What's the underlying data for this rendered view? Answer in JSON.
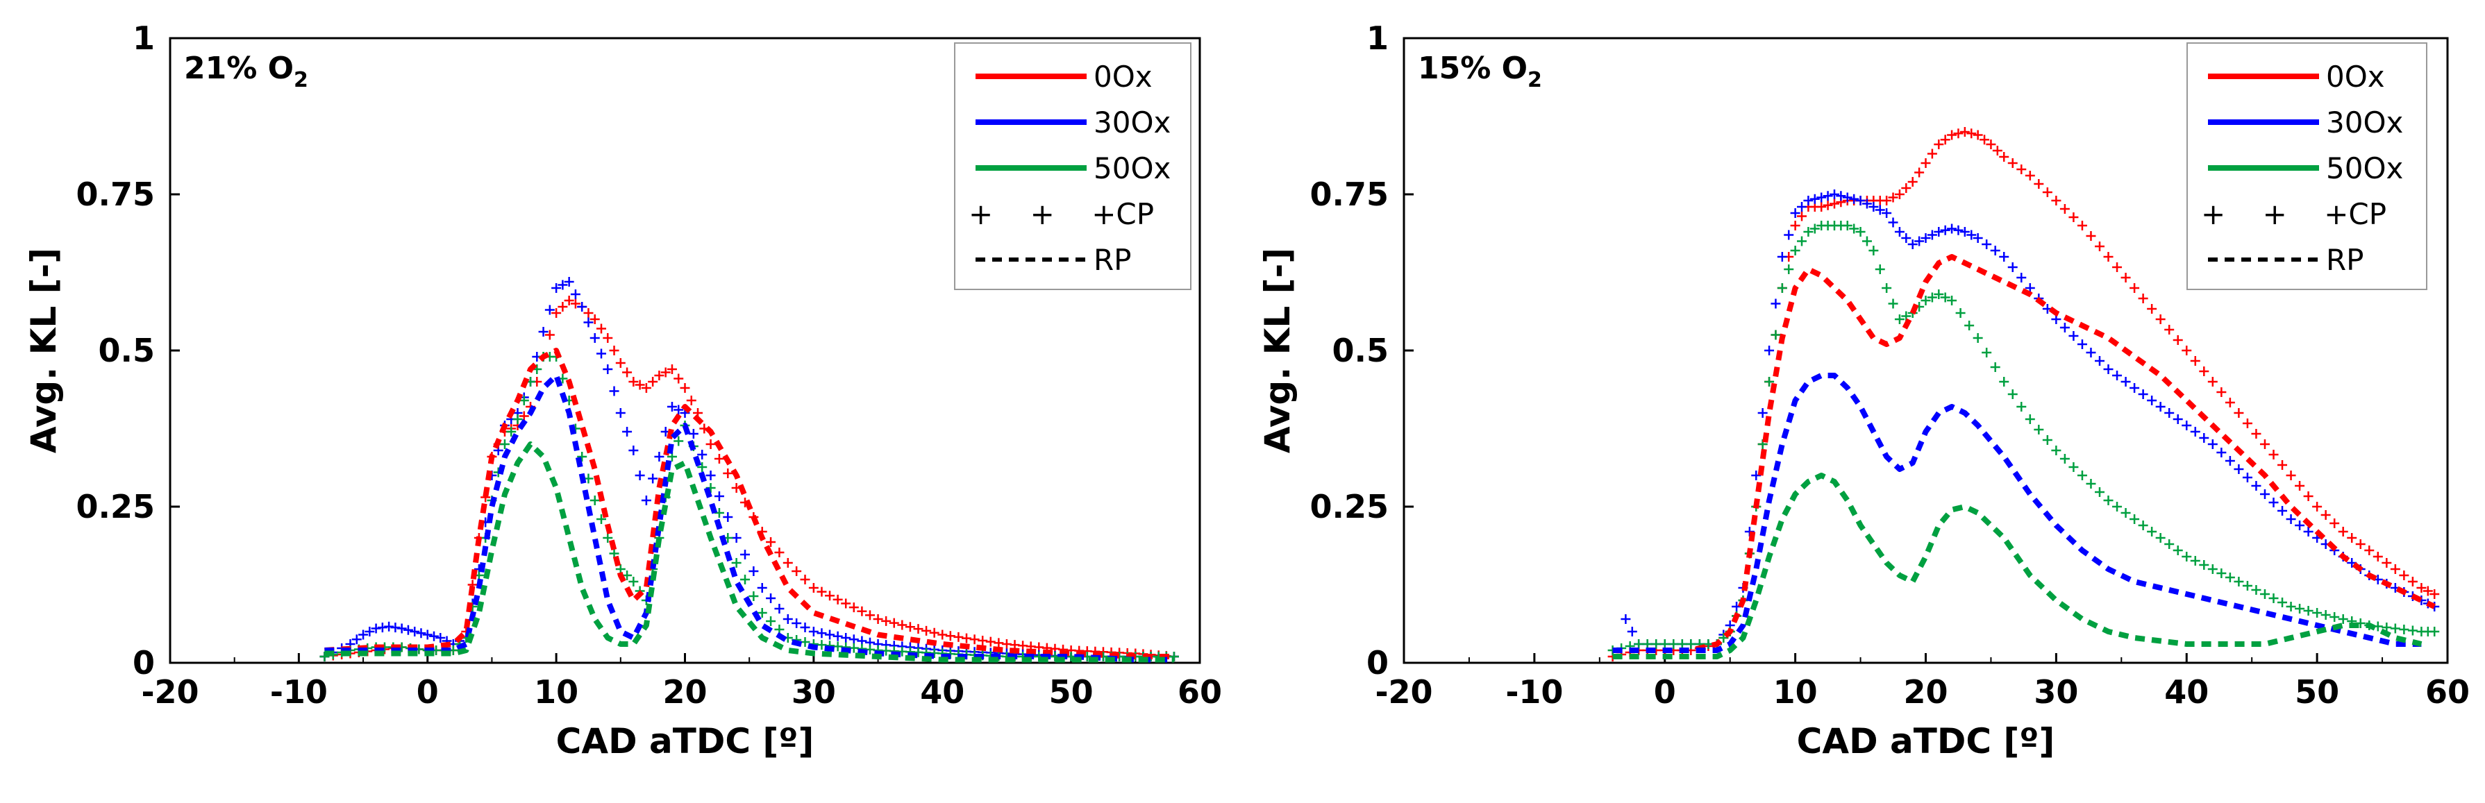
{
  "chart_data": [
    {
      "type": "line",
      "title": "21% O",
      "title_subscript": "2",
      "xlabel": "CAD aTDC [º]",
      "ylabel": "Avg. KL [-]",
      "xlim": [
        -20,
        60
      ],
      "ylim": [
        0,
        1
      ],
      "xticks": [
        "-20",
        "-10",
        "0",
        "10",
        "20",
        "30",
        "40",
        "50",
        "60"
      ],
      "yticks": [
        "0",
        "0.25",
        "0.5",
        "0.75",
        "1"
      ],
      "legend": {
        "position": "top-right",
        "entries": [
          {
            "label": "0Ox",
            "kind": "line",
            "color": "#ff0000"
          },
          {
            "label": "30Ox",
            "kind": "line",
            "color": "#0000ff"
          },
          {
            "label": "50Ox",
            "kind": "line",
            "color": "#00a040"
          },
          {
            "label": "+ + +CP",
            "kind": "marker"
          },
          {
            "label": "RP",
            "kind": "dash"
          }
        ]
      },
      "series": [
        {
          "name": "0Ox CP",
          "style": "cross",
          "color": "#ff0000",
          "x": [
            -8,
            -6,
            -4,
            -2,
            0,
            2,
            3,
            4,
            5,
            6,
            7,
            8,
            9,
            10,
            11,
            12,
            13,
            14,
            15,
            16,
            17,
            18,
            19,
            20,
            21,
            22,
            24,
            26,
            28,
            30,
            35,
            40,
            45,
            50,
            55,
            58
          ],
          "y": [
            0.01,
            0.015,
            0.02,
            0.025,
            0.02,
            0.02,
            0.05,
            0.2,
            0.33,
            0.37,
            0.38,
            0.41,
            0.49,
            0.56,
            0.58,
            0.57,
            0.55,
            0.52,
            0.48,
            0.45,
            0.44,
            0.46,
            0.47,
            0.44,
            0.4,
            0.35,
            0.28,
            0.21,
            0.16,
            0.12,
            0.07,
            0.045,
            0.03,
            0.02,
            0.015,
            0.01
          ]
        },
        {
          "name": "30Ox CP",
          "style": "cross",
          "color": "#0000ff",
          "x": [
            -8,
            -6,
            -5,
            -4,
            -3,
            -2,
            -1,
            0,
            1,
            2,
            3,
            4,
            5,
            6,
            7,
            8,
            9,
            10,
            11,
            12,
            13,
            14,
            15,
            16,
            17,
            18,
            19,
            20,
            22,
            24,
            26,
            28,
            30,
            35,
            40,
            45,
            50,
            55,
            58
          ],
          "y": [
            0.01,
            0.03,
            0.045,
            0.055,
            0.058,
            0.055,
            0.05,
            0.045,
            0.04,
            0.03,
            0.04,
            0.15,
            0.3,
            0.38,
            0.4,
            0.45,
            0.53,
            0.6,
            0.61,
            0.57,
            0.52,
            0.47,
            0.4,
            0.34,
            0.26,
            0.33,
            0.41,
            0.4,
            0.3,
            0.2,
            0.12,
            0.07,
            0.05,
            0.03,
            0.02,
            0.015,
            0.01,
            0.01,
            0.01
          ]
        },
        {
          "name": "50Ox CP",
          "style": "cross",
          "color": "#00a040",
          "x": [
            -8,
            -6,
            -4,
            -2,
            0,
            2,
            3,
            4,
            5,
            6,
            7,
            8,
            9,
            10,
            11,
            12,
            13,
            14,
            15,
            16,
            17,
            18,
            19,
            20,
            22,
            24,
            26,
            28,
            30,
            35,
            40,
            45,
            50,
            55,
            58
          ],
          "y": [
            0.01,
            0.02,
            0.025,
            0.025,
            0.02,
            0.02,
            0.04,
            0.14,
            0.26,
            0.35,
            0.39,
            0.45,
            0.49,
            0.49,
            0.42,
            0.33,
            0.26,
            0.2,
            0.15,
            0.13,
            0.1,
            0.2,
            0.33,
            0.38,
            0.28,
            0.16,
            0.08,
            0.04,
            0.03,
            0.02,
            0.015,
            0.01,
            0.01,
            0.01,
            0.01
          ]
        },
        {
          "name": "0Ox RP",
          "style": "dash",
          "color": "#ff0000",
          "x": [
            -8,
            -4,
            0,
            2,
            3,
            4,
            5,
            6,
            7,
            8,
            9,
            10,
            11,
            12,
            13,
            14,
            15,
            16,
            17,
            18,
            19,
            20,
            22,
            24,
            26,
            28,
            30,
            35,
            40,
            45,
            50,
            55,
            58
          ],
          "y": [
            0.02,
            0.025,
            0.025,
            0.03,
            0.05,
            0.2,
            0.33,
            0.38,
            0.42,
            0.47,
            0.49,
            0.5,
            0.45,
            0.38,
            0.31,
            0.22,
            0.14,
            0.1,
            0.12,
            0.28,
            0.38,
            0.41,
            0.37,
            0.3,
            0.2,
            0.12,
            0.08,
            0.045,
            0.03,
            0.02,
            0.015,
            0.01,
            0.01
          ]
        },
        {
          "name": "30Ox RP",
          "style": "dash",
          "color": "#0000ff",
          "x": [
            -8,
            -4,
            0,
            2,
            3,
            4,
            5,
            6,
            7,
            8,
            9,
            10,
            11,
            12,
            13,
            14,
            15,
            16,
            17,
            18,
            19,
            20,
            22,
            24,
            26,
            28,
            30,
            35,
            40,
            45,
            50,
            55,
            58
          ],
          "y": [
            0.02,
            0.02,
            0.02,
            0.02,
            0.03,
            0.12,
            0.25,
            0.33,
            0.37,
            0.4,
            0.44,
            0.46,
            0.4,
            0.3,
            0.2,
            0.1,
            0.05,
            0.04,
            0.08,
            0.22,
            0.36,
            0.38,
            0.26,
            0.13,
            0.06,
            0.035,
            0.025,
            0.015,
            0.01,
            0.01,
            0.01,
            0.005,
            0.005
          ]
        },
        {
          "name": "50Ox RP",
          "style": "dash",
          "color": "#00a040",
          "x": [
            -8,
            -4,
            0,
            2,
            3,
            4,
            5,
            6,
            7,
            8,
            9,
            10,
            11,
            12,
            13,
            14,
            15,
            16,
            17,
            18,
            19,
            20,
            22,
            24,
            26,
            28,
            30,
            35,
            40,
            45,
            50,
            55,
            58
          ],
          "y": [
            0.015,
            0.015,
            0.015,
            0.015,
            0.02,
            0.08,
            0.18,
            0.27,
            0.32,
            0.35,
            0.33,
            0.28,
            0.2,
            0.12,
            0.07,
            0.04,
            0.03,
            0.03,
            0.06,
            0.2,
            0.31,
            0.32,
            0.2,
            0.09,
            0.04,
            0.02,
            0.015,
            0.01,
            0.005,
            0.005,
            0.005,
            0.005,
            0.005
          ]
        }
      ]
    },
    {
      "type": "line",
      "title": "15% O",
      "title_subscript": "2",
      "xlabel": "CAD aTDC [º]",
      "ylabel": "Avg. KL [-]",
      "xlim": [
        -20,
        60
      ],
      "ylim": [
        0,
        1
      ],
      "xticks": [
        "-20",
        "-10",
        "0",
        "10",
        "20",
        "30",
        "40",
        "50",
        "60"
      ],
      "yticks": [
        "0",
        "0.25",
        "0.5",
        "0.75",
        "1"
      ],
      "legend": {
        "position": "top-right",
        "entries": [
          {
            "label": "0Ox",
            "kind": "line",
            "color": "#ff0000"
          },
          {
            "label": "30Ox",
            "kind": "line",
            "color": "#0000ff"
          },
          {
            "label": "50Ox",
            "kind": "line",
            "color": "#00a040"
          },
          {
            "label": "+ + +CP",
            "kind": "marker"
          },
          {
            "label": "RP",
            "kind": "dash"
          }
        ]
      },
      "series": [
        {
          "name": "0Ox CP",
          "style": "cross",
          "color": "#ff0000",
          "x": [
            -4,
            -2,
            0,
            2,
            4,
            5,
            6,
            7,
            8,
            9,
            10,
            11,
            12,
            13,
            14,
            15,
            16,
            17,
            18,
            19,
            20,
            21,
            22,
            23,
            24,
            25,
            26,
            28,
            30,
            32,
            34,
            36,
            38,
            40,
            42,
            44,
            46,
            48,
            50,
            52,
            54,
            56,
            58,
            59
          ],
          "y": [
            0.01,
            0.02,
            0.02,
            0.02,
            0.03,
            0.05,
            0.1,
            0.25,
            0.45,
            0.6,
            0.7,
            0.73,
            0.73,
            0.735,
            0.74,
            0.74,
            0.74,
            0.74,
            0.75,
            0.77,
            0.8,
            0.83,
            0.845,
            0.85,
            0.845,
            0.83,
            0.81,
            0.78,
            0.74,
            0.7,
            0.65,
            0.6,
            0.55,
            0.5,
            0.45,
            0.4,
            0.35,
            0.3,
            0.25,
            0.21,
            0.18,
            0.15,
            0.12,
            0.11
          ]
        },
        {
          "name": "30Ox CP",
          "style": "cross",
          "color": "#0000ff",
          "x": [
            -3,
            -2,
            0,
            2,
            4,
            5,
            6,
            7,
            8,
            9,
            10,
            11,
            12,
            13,
            14,
            15,
            16,
            17,
            18,
            19,
            20,
            21,
            22,
            23,
            24,
            26,
            28,
            30,
            32,
            34,
            36,
            38,
            40,
            42,
            44,
            46,
            48,
            50,
            52,
            54,
            56,
            58,
            59
          ],
          "y": [
            0.07,
            0.03,
            0.03,
            0.03,
            0.03,
            0.06,
            0.12,
            0.3,
            0.5,
            0.65,
            0.72,
            0.74,
            0.745,
            0.75,
            0.745,
            0.74,
            0.73,
            0.72,
            0.69,
            0.67,
            0.68,
            0.69,
            0.695,
            0.69,
            0.68,
            0.65,
            0.6,
            0.55,
            0.51,
            0.47,
            0.44,
            0.41,
            0.38,
            0.35,
            0.31,
            0.27,
            0.23,
            0.2,
            0.17,
            0.14,
            0.12,
            0.1,
            0.09
          ]
        },
        {
          "name": "50Ox CP",
          "style": "cross",
          "color": "#00a040",
          "x": [
            -4,
            -2,
            0,
            2,
            4,
            5,
            6,
            7,
            8,
            9,
            10,
            11,
            12,
            13,
            14,
            15,
            16,
            17,
            18,
            19,
            20,
            21,
            22,
            24,
            26,
            28,
            30,
            32,
            34,
            36,
            38,
            40,
            42,
            44,
            46,
            48,
            50,
            52,
            54,
            56,
            58,
            59
          ],
          "y": [
            0.02,
            0.03,
            0.03,
            0.03,
            0.03,
            0.05,
            0.1,
            0.25,
            0.45,
            0.6,
            0.66,
            0.69,
            0.7,
            0.7,
            0.7,
            0.69,
            0.66,
            0.6,
            0.55,
            0.56,
            0.58,
            0.59,
            0.58,
            0.52,
            0.45,
            0.39,
            0.34,
            0.3,
            0.26,
            0.23,
            0.2,
            0.17,
            0.15,
            0.13,
            0.11,
            0.09,
            0.08,
            0.07,
            0.06,
            0.055,
            0.05,
            0.05
          ]
        },
        {
          "name": "0Ox RP",
          "style": "dash",
          "color": "#ff0000",
          "x": [
            -4,
            -2,
            0,
            2,
            4,
            5,
            6,
            7,
            8,
            9,
            10,
            11,
            12,
            13,
            14,
            15,
            16,
            17,
            18,
            19,
            20,
            21,
            22,
            23,
            24,
            25,
            26,
            28,
            30,
            32,
            34,
            36,
            38,
            40,
            42,
            44,
            46,
            48,
            50,
            52,
            54,
            56,
            58,
            59
          ],
          "y": [
            0.02,
            0.02,
            0.02,
            0.02,
            0.03,
            0.05,
            0.1,
            0.25,
            0.4,
            0.52,
            0.6,
            0.63,
            0.62,
            0.6,
            0.58,
            0.55,
            0.52,
            0.51,
            0.52,
            0.56,
            0.61,
            0.64,
            0.65,
            0.64,
            0.63,
            0.62,
            0.61,
            0.59,
            0.56,
            0.54,
            0.52,
            0.49,
            0.46,
            0.42,
            0.38,
            0.34,
            0.3,
            0.25,
            0.21,
            0.17,
            0.14,
            0.12,
            0.1,
            0.09
          ]
        },
        {
          "name": "30Ox RP",
          "style": "dash",
          "color": "#0000ff",
          "x": [
            -4,
            -2,
            0,
            2,
            4,
            5,
            6,
            7,
            8,
            9,
            10,
            11,
            12,
            13,
            14,
            15,
            16,
            17,
            18,
            19,
            20,
            21,
            22,
            23,
            24,
            26,
            28,
            30,
            32,
            34,
            36,
            38,
            40,
            42,
            44,
            46,
            48,
            50,
            52,
            54,
            56,
            58
          ],
          "y": [
            0.02,
            0.02,
            0.02,
            0.02,
            0.02,
            0.03,
            0.06,
            0.15,
            0.26,
            0.35,
            0.42,
            0.45,
            0.46,
            0.46,
            0.44,
            0.41,
            0.37,
            0.33,
            0.31,
            0.32,
            0.37,
            0.4,
            0.41,
            0.4,
            0.38,
            0.33,
            0.27,
            0.22,
            0.18,
            0.15,
            0.13,
            0.12,
            0.11,
            0.1,
            0.09,
            0.08,
            0.07,
            0.06,
            0.05,
            0.04,
            0.03,
            0.03
          ]
        },
        {
          "name": "50Ox RP",
          "style": "dash",
          "color": "#00a040",
          "x": [
            -4,
            -2,
            0,
            2,
            4,
            5,
            6,
            7,
            8,
            9,
            10,
            11,
            12,
            13,
            14,
            15,
            16,
            17,
            18,
            19,
            20,
            21,
            22,
            23,
            24,
            26,
            28,
            30,
            32,
            34,
            36,
            38,
            40,
            42,
            44,
            46,
            48,
            50,
            52,
            54,
            56,
            58
          ],
          "y": [
            0.01,
            0.01,
            0.01,
            0.01,
            0.01,
            0.02,
            0.04,
            0.1,
            0.17,
            0.23,
            0.27,
            0.29,
            0.3,
            0.29,
            0.26,
            0.22,
            0.19,
            0.16,
            0.14,
            0.13,
            0.17,
            0.22,
            0.245,
            0.25,
            0.24,
            0.2,
            0.14,
            0.1,
            0.07,
            0.05,
            0.04,
            0.035,
            0.03,
            0.03,
            0.03,
            0.03,
            0.04,
            0.05,
            0.06,
            0.06,
            0.04,
            0.03
          ]
        }
      ]
    }
  ]
}
